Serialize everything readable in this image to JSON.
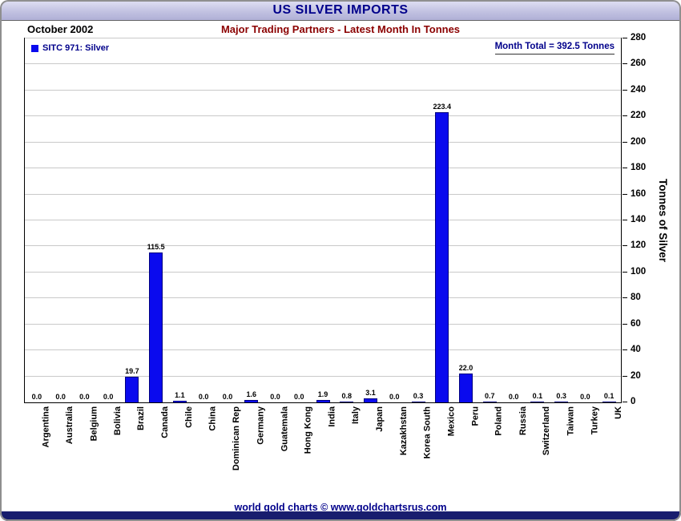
{
  "header": {
    "title": "US SILVER IMPORTS",
    "date_label": "October 2002",
    "subtitle": "Major Trading Partners - Latest Month In Tonnes"
  },
  "legend": {
    "label": "SITC 971: Silver"
  },
  "annotations": {
    "month_total": "Month Total = 392.5 Tonnes"
  },
  "footer": {
    "credit": "world gold charts © www.goldchartsrus.com"
  },
  "colors": {
    "bar": "#0a0aee",
    "navy_text": "#00008b",
    "subtitle_red": "#8b0000",
    "titlebar_top": "#e2e2f5",
    "titlebar_bottom": "#b0b0d6",
    "bottom_bar": "#181d6e",
    "gridline": "#c9c9c9"
  },
  "chart_data": {
    "type": "bar",
    "title": "US SILVER IMPORTS",
    "subtitle": "Major Trading Partners - Latest Month In Tonnes",
    "period": "October 2002",
    "series_name": "SITC 971: Silver",
    "month_total_tonnes": 392.5,
    "categories": [
      "Argentina",
      "Australia",
      "Belgium",
      "Bolivia",
      "Brazil",
      "Canada",
      "Chile",
      "China",
      "Dominican Rep",
      "Germany",
      "Guatemala",
      "Hong Kong",
      "India",
      "Italy",
      "Japan",
      "Kazakhstan",
      "Korea South",
      "Mexico",
      "Peru",
      "Poland",
      "Russia",
      "Switzerland",
      "Taiwan",
      "Turkey",
      "UK"
    ],
    "values": [
      0.0,
      0.0,
      0.0,
      0.0,
      19.7,
      115.5,
      1.1,
      0.0,
      0.0,
      1.6,
      0.0,
      0.0,
      1.9,
      0.8,
      3.1,
      0.0,
      0.3,
      223.4,
      22.0,
      0.7,
      0.0,
      0.1,
      0.3,
      0.0,
      0.1
    ],
    "xlabel": "",
    "ylabel": "Tonnes of Silver",
    "ylim": [
      0,
      280
    ],
    "ytick_step": 20,
    "grid": true,
    "legend_position": "top-left",
    "value_label_decimals": 1
  }
}
